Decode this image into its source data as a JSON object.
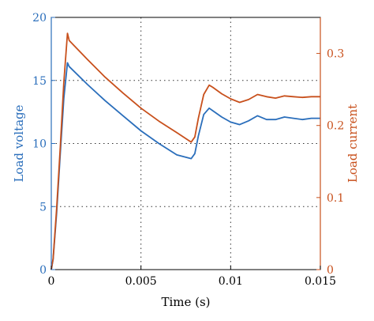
{
  "chart_data": {
    "type": "line",
    "xlabel": "Time (s)",
    "ylabel_left": "Load voltage",
    "ylabel_right": "Load current",
    "xlim": [
      0,
      0.015
    ],
    "ylim_left": [
      0,
      20
    ],
    "ylim_right": [
      0,
      0.35
    ],
    "x_ticks": [
      0,
      0.005,
      0.01,
      0.015
    ],
    "x_tick_labels": [
      "0",
      "0.005",
      "0.01",
      "0.015"
    ],
    "y_left_ticks": [
      0,
      5,
      10,
      15,
      20
    ],
    "y_left_tick_labels": [
      "0",
      "5",
      "10",
      "15",
      "20"
    ],
    "y_right_ticks": [
      0,
      0.1,
      0.2,
      0.3
    ],
    "y_right_tick_labels": [
      "0",
      "0.1",
      "0.2",
      "0.3"
    ],
    "grid": "dotted",
    "colors": {
      "left_axis": "#2a6ebb",
      "right_axis": "#c8501c"
    },
    "series": [
      {
        "axis": "left",
        "color": "#2a6ebb",
        "x": [
          0,
          0.0001,
          0.0003,
          0.0005,
          0.0007,
          0.0009,
          0.001,
          0.002,
          0.003,
          0.004,
          0.005,
          0.006,
          0.007,
          0.0078,
          0.008,
          0.0082,
          0.0085,
          0.0088,
          0.009,
          0.0095,
          0.01,
          0.0105,
          0.011,
          0.0115,
          0.012,
          0.0125,
          0.013,
          0.0135,
          0.014,
          0.0145,
          0.015
        ],
        "y": [
          0,
          0.8,
          4.5,
          9.2,
          13.6,
          16.4,
          16.1,
          14.7,
          13.4,
          12.2,
          11.0,
          10.0,
          9.1,
          8.8,
          9.2,
          10.6,
          12.3,
          12.8,
          12.6,
          12.1,
          11.7,
          11.5,
          11.8,
          12.2,
          11.9,
          11.9,
          12.1,
          12.0,
          11.9,
          12.0,
          12.0
        ]
      },
      {
        "axis": "right",
        "color": "#c8501c",
        "x": [
          0,
          0.0001,
          0.0003,
          0.0005,
          0.0007,
          0.0009,
          0.001,
          0.002,
          0.003,
          0.004,
          0.005,
          0.006,
          0.007,
          0.0078,
          0.008,
          0.0082,
          0.0085,
          0.0088,
          0.009,
          0.0095,
          0.01,
          0.0105,
          0.011,
          0.0115,
          0.012,
          0.0125,
          0.013,
          0.0135,
          0.014,
          0.0145,
          0.015
        ],
        "y": [
          0,
          0.015,
          0.085,
          0.17,
          0.26,
          0.328,
          0.318,
          0.292,
          0.267,
          0.245,
          0.224,
          0.206,
          0.19,
          0.177,
          0.184,
          0.21,
          0.243,
          0.256,
          0.253,
          0.244,
          0.237,
          0.232,
          0.236,
          0.243,
          0.24,
          0.238,
          0.241,
          0.24,
          0.239,
          0.24,
          0.24
        ]
      }
    ]
  }
}
